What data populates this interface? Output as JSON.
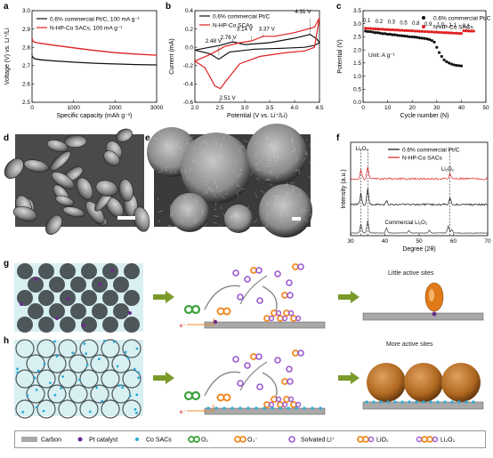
{
  "panels": {
    "a": {
      "label": "a",
      "chart_data": {
        "type": "line",
        "xlabel": "Specific capacity (mAh g⁻¹)",
        "ylabel": "Voltage (V) vs. Li⁺/Li",
        "xlim": [
          0,
          3000
        ],
        "ylim": [
          2.5,
          3.0
        ],
        "xticks": [
          "0",
          "1000",
          "2000",
          "3000"
        ],
        "yticks": [
          "2.5",
          "2.6",
          "2.7",
          "2.8",
          "2.9",
          "3.0"
        ],
        "legend": "top-left",
        "series": [
          {
            "name": "0.6% commercial Pt/C, 100 mA g⁻¹",
            "color": "#111111",
            "x": [
              0,
              20,
              60,
              200,
              500,
              1000,
              1500,
              2000,
              2500,
              3000
            ],
            "y": [
              2.755,
              2.745,
              2.738,
              2.732,
              2.726,
              2.719,
              2.713,
              2.709,
              2.706,
              2.704
            ]
          },
          {
            "name": "N-HP-Co SACs, 100 mA g⁻¹",
            "color": "#e02020",
            "x": [
              0,
              20,
              60,
              200,
              500,
              1000,
              1500,
              2000,
              2500,
              3000
            ],
            "y": [
              2.85,
              2.835,
              2.828,
              2.822,
              2.812,
              2.797,
              2.783,
              2.771,
              2.763,
              2.757
            ]
          }
        ]
      }
    },
    "b": {
      "label": "b",
      "chart_data": {
        "type": "line",
        "xlabel": "Potential (V vs. Li⁺/Li)",
        "ylabel": "Current (mA)",
        "xlim": [
          2.0,
          4.5
        ],
        "ylim": [
          -0.6,
          0.4
        ],
        "xticks": [
          "2.0",
          "2.5",
          "3.0",
          "3.5",
          "4.0",
          "4.5"
        ],
        "yticks": [
          "-0.6",
          "-0.4",
          "-0.2",
          "0.0",
          "0.2",
          "0.4"
        ],
        "legend": "top-left",
        "annotations": [
          "2.48 V",
          "2.76 V",
          "3.14 V",
          "3.37 V",
          "4.31 V",
          "2.51 V"
        ],
        "series": [
          {
            "name": "0.6% commercial Pt/C",
            "color": "#111111",
            "x": [
              2.0,
              2.3,
              2.48,
              2.7,
              3.2,
              3.8,
              4.2,
              4.4,
              4.5,
              4.45,
              4.31,
              4.0,
              3.5,
              3.0,
              2.76,
              2.5,
              2.2,
              2.0
            ],
            "y": [
              -0.03,
              -0.07,
              -0.13,
              -0.05,
              -0.02,
              -0.01,
              0.0,
              0.02,
              0.05,
              0.09,
              0.14,
              0.1,
              0.05,
              0.03,
              0.06,
              0.02,
              -0.01,
              -0.03
            ]
          },
          {
            "name": "N-HP-Co SCAs",
            "color": "#e02020",
            "x": [
              2.0,
              2.2,
              2.4,
              2.51,
              2.65,
              2.9,
              3.3,
              3.8,
              4.2,
              4.4,
              4.5,
              4.4,
              4.0,
              3.6,
              3.37,
              3.14,
              2.9,
              2.6,
              2.3,
              2.0
            ],
            "y": [
              -0.15,
              -0.22,
              -0.42,
              -0.45,
              -0.35,
              -0.18,
              -0.1,
              -0.06,
              -0.04,
              0.0,
              0.32,
              0.22,
              0.16,
              0.12,
              0.12,
              0.07,
              0.05,
              0.01,
              -0.08,
              -0.15
            ]
          }
        ]
      }
    },
    "c": {
      "label": "c",
      "chart_data": {
        "type": "scatter",
        "xlabel": "Cycle number (N)",
        "ylabel": "Potential (V)",
        "xlim": [
          0,
          50
        ],
        "ylim": [
          0,
          3.5
        ],
        "xticks": [
          "0",
          "10",
          "20",
          "30",
          "40",
          "50"
        ],
        "yticks": [
          "0.0",
          "0.5",
          "1.0",
          "1.5",
          "2.0",
          "2.5",
          "3.0",
          "3.5"
        ],
        "unit_note": "Unit: A g⁻¹",
        "rate_labels": [
          "0.1",
          "0.2",
          "0.3",
          "0.5",
          "0.8",
          "0.9",
          "1.0",
          "1.1",
          "0.1"
        ],
        "legend": "top-right",
        "series": [
          {
            "name": "0.6% commercial Pt/C",
            "color": "#111111",
            "x": [
              1,
              2,
              3,
              4,
              5,
              6,
              7,
              8,
              9,
              10,
              11,
              12,
              13,
              14,
              15,
              16,
              17,
              18,
              19,
              20,
              21,
              22,
              23,
              24,
              25,
              26,
              27,
              28,
              29,
              30,
              31,
              32,
              33,
              34,
              35,
              36,
              37,
              38,
              39,
              40
            ],
            "y": [
              2.72,
              2.7,
              2.7,
              2.68,
              2.66,
              2.66,
              2.64,
              2.62,
              2.62,
              2.6,
              2.6,
              2.58,
              2.58,
              2.56,
              2.55,
              2.54,
              2.53,
              2.52,
              2.5,
              2.5,
              2.49,
              2.48,
              2.46,
              2.45,
              2.44,
              2.42,
              2.4,
              2.36,
              2.3,
              2.1,
              1.9,
              1.75,
              1.62,
              1.55,
              1.5,
              1.46,
              1.43,
              1.41,
              1.4,
              1.39
            ]
          },
          {
            "name": "N-HP-Co SACs",
            "color": "#e02020",
            "x": [
              1,
              2,
              3,
              4,
              5,
              6,
              7,
              8,
              9,
              10,
              11,
              12,
              13,
              14,
              15,
              16,
              17,
              18,
              19,
              20,
              21,
              22,
              23,
              24,
              25,
              26,
              27,
              28,
              29,
              30,
              31,
              32,
              33,
              34,
              35,
              36,
              37,
              38,
              39,
              40,
              41,
              42,
              43,
              44,
              45
            ],
            "y": [
              2.83,
              2.82,
              2.82,
              2.81,
              2.8,
              2.8,
              2.79,
              2.79,
              2.78,
              2.78,
              2.77,
              2.77,
              2.76,
              2.76,
              2.75,
              2.75,
              2.74,
              2.74,
              2.73,
              2.73,
              2.72,
              2.72,
              2.71,
              2.71,
              2.7,
              2.7,
              2.69,
              2.69,
              2.68,
              2.68,
              2.67,
              2.67,
              2.66,
              2.66,
              2.65,
              2.65,
              2.64,
              2.64,
              2.63,
              2.63,
              2.73,
              2.73,
              2.72,
              2.72,
              2.72
            ]
          }
        ]
      }
    },
    "d": {
      "label": "d"
    },
    "e": {
      "label": "e"
    },
    "f": {
      "label": "f",
      "chart_data": {
        "type": "line",
        "xlabel": "Degree (2θ)",
        "ylabel": "Intensity (a.u.)",
        "xlim": [
          30,
          70
        ],
        "xticks": [
          "30",
          "40",
          "50",
          "60",
          "70"
        ],
        "peak_labels": [
          "Li₂O₂",
          "Li₂O₂"
        ],
        "reference_label": "Commercial Li₂O₂",
        "legend": "top-right",
        "series": [
          {
            "name": "0.6% commercial Pt/C",
            "color": "#111111"
          },
          {
            "name": "N-HP-Co SACs",
            "color": "#e02020"
          }
        ]
      }
    },
    "g": {
      "label": "g",
      "caption": "Little active sites"
    },
    "h": {
      "label": "h",
      "caption": "More active sites"
    }
  },
  "legend_bar": {
    "items": [
      {
        "label": "Carbon",
        "icon": "carbon-bar-icon"
      },
      {
        "label": "Pt catalyst",
        "icon": "pt-dot-icon"
      },
      {
        "label": "Co SACs",
        "icon": "co-dot-icon"
      },
      {
        "label": "O₂",
        "icon": "o2-icon"
      },
      {
        "label": "O₂⁻",
        "icon": "superoxide-icon"
      },
      {
        "label": "Solvated Li⁺",
        "icon": "li-ion-icon"
      },
      {
        "label": "LiO₂",
        "icon": "lio2-icon"
      },
      {
        "label": "Li₂O₂",
        "icon": "li2o2-icon"
      }
    ]
  },
  "colors": {
    "red": "#e02020",
    "black": "#111111",
    "carbon": "#a9a9a9",
    "pt": "#6a2c8a",
    "co": "#29a9d8",
    "green": "#3ca33c",
    "orange": "#f08a24",
    "li": "#9b59d0",
    "cyan_bg": "#d9f0f3",
    "arrow": "#7a9a2a"
  }
}
